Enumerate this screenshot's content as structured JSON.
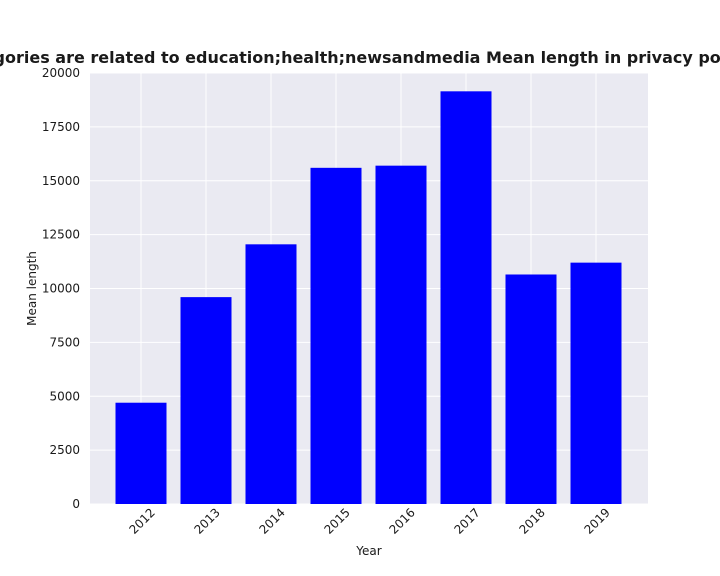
{
  "chart_data": {
    "type": "bar",
    "title": "When categories are related to education;health;newsandmedia Mean length in privacy policies by year",
    "xlabel": "Year",
    "ylabel": "Mean length",
    "categories": [
      "2012",
      "2013",
      "2014",
      "2015",
      "2016",
      "2017",
      "2018",
      "2019"
    ],
    "values": [
      4700,
      9600,
      12050,
      15600,
      15700,
      19150,
      10650,
      11200
    ],
    "ylim": [
      0,
      20000
    ],
    "yticks": [
      0,
      2500,
      5000,
      7500,
      10000,
      12500,
      15000,
      17500,
      20000
    ],
    "grid": true,
    "bar_color": "#0000ff",
    "plot_background": "#eaeaf2",
    "grid_color": "#ffffff"
  }
}
